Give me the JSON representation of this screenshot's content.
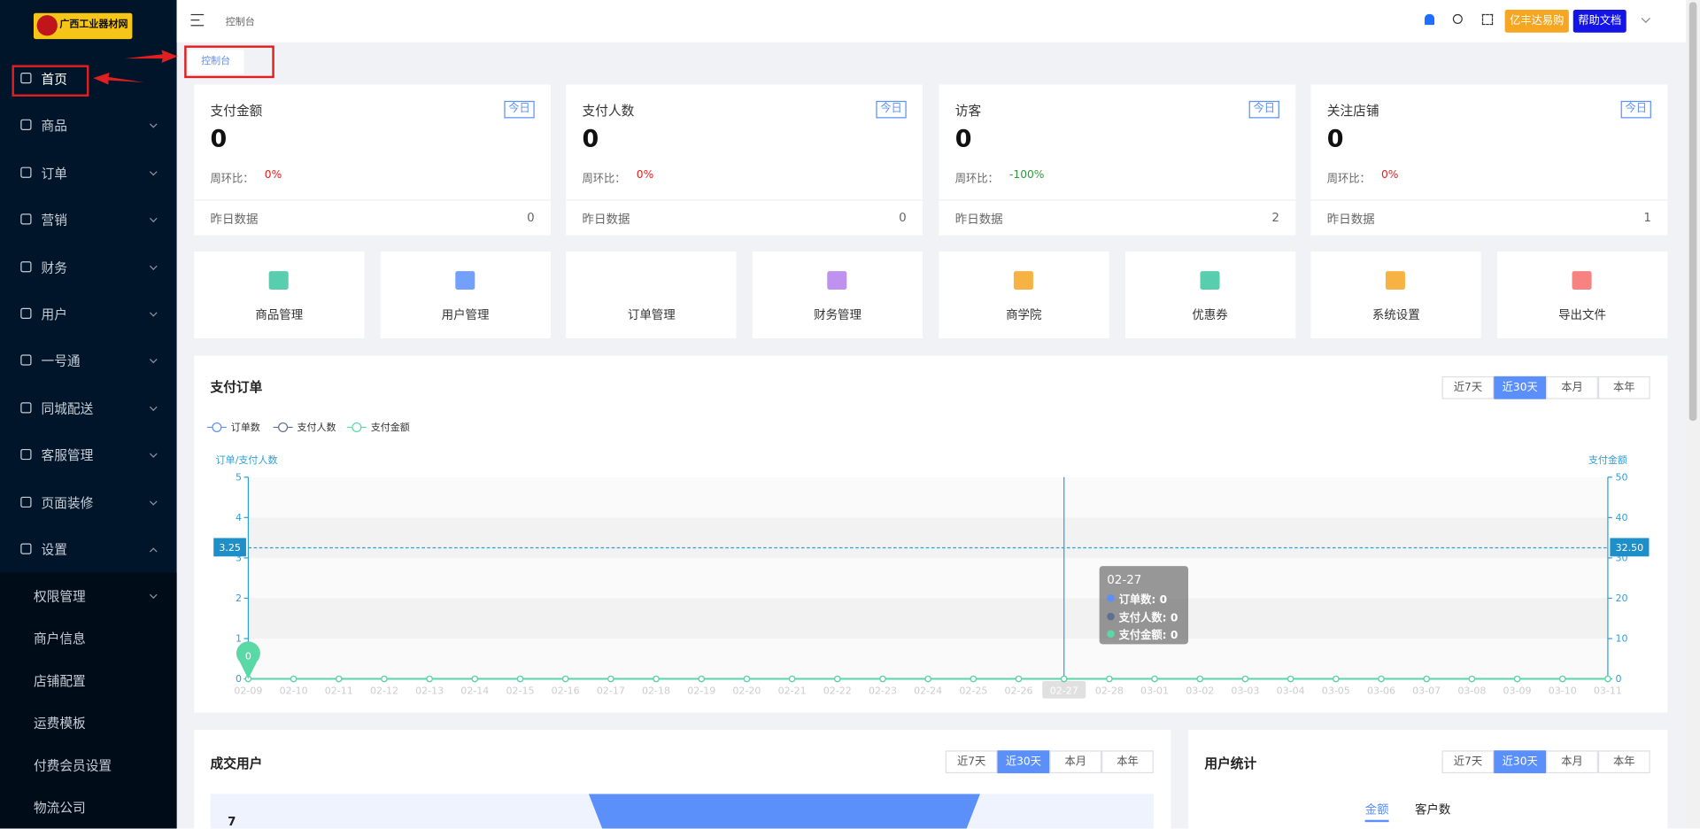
{
  "sidebar": {
    "logo": "广西工业器材网",
    "active_menu": 0,
    "menu": [
      "首页",
      "商品",
      "订单",
      "营销",
      "财务",
      "用户",
      "一号通",
      "同城配送",
      "客服管理",
      "页面装修",
      "设置"
    ],
    "submenu": [
      "权限管理",
      "商户信息",
      "店铺配置",
      "运费模板",
      "付费会员设置",
      "物流公司"
    ]
  },
  "header": {
    "breadcrumb": "控制台",
    "buttons": [
      "亿丰达易购",
      "帮助文档"
    ],
    "tab": "控制台"
  },
  "stats": [
    {
      "title": "支付金额",
      "badge": "今日",
      "value": 0,
      "compare_label": "周环比：",
      "compare": "0%",
      "yesterday_label": "昨日数据",
      "yesterday": 0
    },
    {
      "title": "支付人数",
      "badge": "今日",
      "value": 0,
      "compare_label": "周环比：",
      "compare": "0%",
      "yesterday_label": "昨日数据",
      "yesterday": 0
    },
    {
      "title": "访客",
      "badge": "今日",
      "value": 0,
      "compare_label": "周环比：",
      "compare": "-100%",
      "yesterday_label": "昨日数据",
      "yesterday": 2
    },
    {
      "title": "关注店铺",
      "badge": "今日",
      "value": 0,
      "compare_label": "周环比：",
      "compare": "0%",
      "yesterday_label": "昨日数据",
      "yesterday": 1
    }
  ],
  "shortcuts": [
    "商品管理",
    "用户管理",
    "订单管理",
    "财务管理",
    "商学院",
    "优惠券",
    "系统设置",
    "导出文件"
  ],
  "chart_data": {
    "type": "line",
    "title": "支付订单",
    "periods": [
      "近7天",
      "近30天",
      "本月",
      "本年"
    ],
    "active_period": 1,
    "y_label": "订单/支付人数",
    "y2_label": "支付金额",
    "categories": [
      "02-09",
      "02-10",
      "02-11",
      "02-12",
      "02-13",
      "02-14",
      "02-15",
      "02-16",
      "02-17",
      "02-18",
      "02-19",
      "02-20",
      "02-21",
      "02-22",
      "02-23",
      "02-24",
      "02-25",
      "02-26",
      "02-27",
      "02-28",
      "03-01",
      "03-02",
      "03-03",
      "03-04",
      "03-05",
      "03-06",
      "03-07",
      "03-08",
      "03-09",
      "03-10",
      "03-11"
    ],
    "series": [
      {
        "name": "订单数",
        "color": "#5b8ff9",
        "values": [
          0,
          0,
          0,
          0,
          0,
          0,
          0,
          0,
          0,
          0,
          0,
          0,
          0,
          0,
          0,
          0,
          0,
          0,
          0,
          0,
          0,
          0,
          0,
          0,
          0,
          0,
          0,
          0,
          0,
          0,
          0
        ]
      },
      {
        "name": "支付人数",
        "color": "#5d7092",
        "values": [
          0,
          0,
          0,
          0,
          0,
          0,
          0,
          0,
          0,
          0,
          0,
          0,
          0,
          0,
          0,
          0,
          0,
          0,
          0,
          0,
          0,
          0,
          0,
          0,
          0,
          0,
          0,
          0,
          0,
          0,
          0
        ]
      },
      {
        "name": "支付金额",
        "color": "#5ad8a6",
        "axis": "y2",
        "values": [
          0,
          0,
          0,
          0,
          0,
          0,
          0,
          0,
          0,
          0,
          0,
          0,
          0,
          0,
          0,
          0,
          0,
          0,
          0,
          0,
          0,
          0,
          0,
          0,
          0,
          0,
          0,
          0,
          0,
          0,
          0
        ]
      }
    ],
    "ylim": [
      0,
      5
    ],
    "yticks": [
      0,
      1,
      2,
      3,
      4,
      5
    ],
    "y2lim": [
      0,
      50
    ],
    "y2ticks": [
      0,
      10,
      20,
      30,
      40,
      50
    ],
    "split_area": true,
    "hover_index": 18,
    "crosshair_y": 3.25,
    "crosshair_y2": {
      "value": 32.5,
      "label": "32.50"
    },
    "tooltip": [
      "订单数: 0",
      "支付人数: 0",
      "支付金额: 0"
    ],
    "mark_point": 0
  },
  "deal_users": {
    "title": "成交用户",
    "periods": [
      "近7天",
      "近30天",
      "本月",
      "本年"
    ],
    "active_period": 1,
    "value": 7
  },
  "user_stats": {
    "title": "用户统计",
    "periods": [
      "近7天",
      "近30天",
      "本月",
      "本年"
    ],
    "active_period": 1,
    "tabs": [
      "金额",
      "客户数"
    ]
  }
}
